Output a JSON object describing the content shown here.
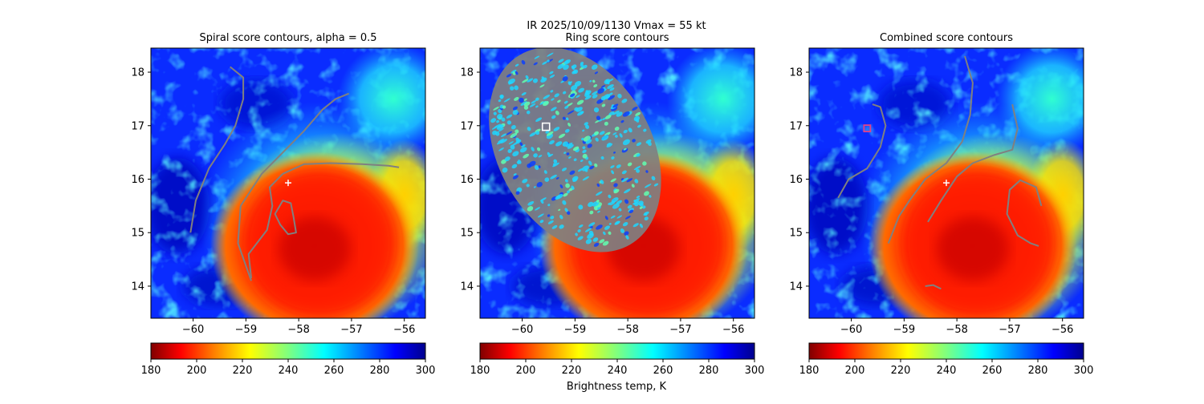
{
  "figure": {
    "suptitle_line1": "IR  2025/10/09/1130    Vmax = 55 kt",
    "colorbar_label": "Brightness temp, K"
  },
  "colors": {
    "contour": "#808080",
    "contour_teal": "#3a9aa6",
    "marker": "#ffffff",
    "marker_magenta": "#e0408a"
  },
  "chart_data": [
    {
      "type": "heatmap",
      "panel": "spiral",
      "title": "Spiral score contours, alpha =  0.5",
      "xlim": [
        -60.8,
        -55.6
      ],
      "ylim": [
        13.4,
        18.45
      ],
      "xticks": [
        -60,
        -59,
        -58,
        -57,
        -56
      ],
      "yticks": [
        14,
        15,
        16,
        17,
        18
      ],
      "colorbar": {
        "vmin": 180,
        "vmax": 300,
        "ticks": [
          180,
          200,
          220,
          240,
          260,
          280,
          300
        ],
        "cmap": "jet_r"
      },
      "storm_center": [
        -57.7,
        14.75
      ],
      "center_marker": [
        -58.2,
        15.93
      ],
      "contours": [
        {
          "name": "arc-west",
          "points": [
            [
              -60.05,
              15.0
            ],
            [
              -59.95,
              15.6
            ],
            [
              -59.7,
              16.2
            ],
            [
              -59.4,
              16.65
            ],
            [
              -59.2,
              17.0
            ],
            [
              -59.05,
              17.5
            ],
            [
              -59.05,
              17.9
            ],
            [
              -59.3,
              18.1
            ]
          ]
        },
        {
          "name": "arc-east",
          "points": [
            [
              -58.9,
              14.1
            ],
            [
              -59.15,
              14.8
            ],
            [
              -59.1,
              15.5
            ],
            [
              -58.7,
              16.1
            ],
            [
              -58.35,
              16.45
            ],
            [
              -57.9,
              16.9
            ],
            [
              -57.55,
              17.3
            ],
            [
              -57.3,
              17.5
            ],
            [
              -57.05,
              17.6
            ]
          ]
        },
        {
          "name": "band-south",
          "points": [
            [
              -58.9,
              14.15
            ],
            [
              -58.95,
              14.6
            ],
            [
              -58.6,
              15.05
            ],
            [
              -58.5,
              15.5
            ],
            [
              -58.55,
              15.85
            ],
            [
              -58.3,
              16.1
            ],
            [
              -57.9,
              16.28
            ],
            [
              -57.4,
              16.3
            ],
            [
              -56.8,
              16.28
            ],
            [
              -56.3,
              16.25
            ],
            [
              -56.1,
              16.22
            ]
          ]
        },
        {
          "name": "loop",
          "closed": true,
          "points": [
            [
              -58.3,
              15.6
            ],
            [
              -58.15,
              15.55
            ],
            [
              -58.1,
              15.3
            ],
            [
              -58.05,
              15.0
            ],
            [
              -58.2,
              14.97
            ],
            [
              -58.35,
              15.15
            ],
            [
              -58.45,
              15.35
            ]
          ]
        }
      ]
    },
    {
      "type": "heatmap",
      "panel": "ring",
      "title": "Ring score contours",
      "xlim": [
        -60.8,
        -55.6
      ],
      "ylim": [
        13.4,
        18.45
      ],
      "xticks": [
        -60,
        -59,
        -58,
        -57,
        -56
      ],
      "yticks": [
        14,
        15,
        16,
        17,
        18
      ],
      "colorbar": {
        "vmin": 180,
        "vmax": 300,
        "ticks": [
          180,
          200,
          220,
          240,
          260,
          280,
          300
        ],
        "cmap": "jet_r"
      },
      "storm_center": [
        -57.7,
        14.75
      ],
      "center_marker": [
        -59.55,
        16.98
      ],
      "center_marker_shape": "square",
      "ring_region": {
        "center": [
          -59.0,
          16.55
        ],
        "rx": 1.45,
        "ry": 2.05,
        "rotation_deg": -30
      }
    },
    {
      "type": "heatmap",
      "panel": "combined",
      "title": "Combined score contours",
      "xlim": [
        -60.8,
        -55.6
      ],
      "ylim": [
        13.4,
        18.45
      ],
      "xticks": [
        -60,
        -59,
        -58,
        -57,
        -56
      ],
      "yticks": [
        14,
        15,
        16,
        17,
        18
      ],
      "colorbar": {
        "vmin": 180,
        "vmax": 300,
        "ticks": [
          180,
          200,
          220,
          240,
          260,
          280,
          300
        ],
        "cmap": "jet_r"
      },
      "storm_center": [
        -57.7,
        14.75
      ],
      "center_marker": [
        -58.2,
        15.93
      ],
      "magenta_marker": [
        -59.7,
        16.95
      ],
      "contours": [
        {
          "name": "west-arc",
          "points": [
            [
              -60.25,
              15.65
            ],
            [
              -60.05,
              16.0
            ],
            [
              -59.7,
              16.2
            ],
            [
              -59.45,
              16.6
            ],
            [
              -59.35,
              17.0
            ],
            [
              -59.45,
              17.35
            ],
            [
              -59.6,
              17.4
            ]
          ]
        },
        {
          "name": "center-arc",
          "points": [
            [
              -59.3,
              14.8
            ],
            [
              -59.1,
              15.3
            ],
            [
              -58.9,
              15.6
            ],
            [
              -58.6,
              16.0
            ],
            [
              -58.2,
              16.3
            ],
            [
              -57.9,
              16.7
            ],
            [
              -57.75,
              17.2
            ],
            [
              -57.7,
              17.8
            ],
            [
              -57.85,
              18.3
            ]
          ]
        },
        {
          "name": "east-arc",
          "points": [
            [
              -58.55,
              15.2
            ],
            [
              -58.3,
              15.6
            ],
            [
              -58.0,
              16.05
            ],
            [
              -57.7,
              16.3
            ],
            [
              -57.3,
              16.45
            ],
            [
              -56.95,
              16.55
            ],
            [
              -56.85,
              16.95
            ],
            [
              -56.95,
              17.4
            ]
          ]
        },
        {
          "name": "hook",
          "points": [
            [
              -56.4,
              15.5
            ],
            [
              -56.5,
              15.85
            ],
            [
              -56.8,
              15.98
            ],
            [
              -57.0,
              15.8
            ],
            [
              -57.05,
              15.35
            ],
            [
              -56.85,
              14.95
            ],
            [
              -56.6,
              14.8
            ],
            [
              -56.45,
              14.75
            ]
          ]
        },
        {
          "name": "south-bit",
          "points": [
            [
              -58.6,
              14.0
            ],
            [
              -58.45,
              14.02
            ],
            [
              -58.3,
              13.95
            ]
          ]
        }
      ]
    }
  ]
}
